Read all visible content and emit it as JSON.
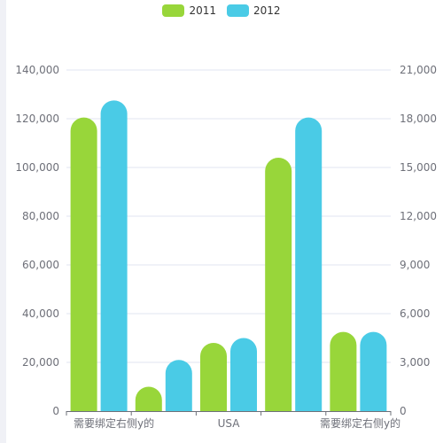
{
  "chart_data": {
    "type": "bar",
    "categories": [
      "需要绑定右侧y的",
      "",
      "USA",
      "",
      "需要绑定右侧y的"
    ],
    "series": [
      {
        "name": "2011",
        "color": "#98d63a",
        "values": [
          120500,
          10000,
          28000,
          104000,
          32500
        ]
      },
      {
        "name": "2012",
        "color": "#4acbe6",
        "values": [
          127500,
          21000,
          30000,
          120500,
          32500
        ]
      }
    ],
    "left_axis": {
      "ylim": [
        0,
        140000
      ],
      "ticks": [
        "0",
        "20,000",
        "40,000",
        "60,000",
        "80,000",
        "100,000",
        "120,000",
        "140,000"
      ]
    },
    "right_axis": {
      "ylim": [
        0,
        21000
      ],
      "ticks": [
        "0",
        "3,000",
        "6,000",
        "9,000",
        "12,000",
        "15,000",
        "18,000",
        "21,000"
      ]
    },
    "grid": true,
    "legend_position": "top-center",
    "bar_style": "rounded"
  }
}
